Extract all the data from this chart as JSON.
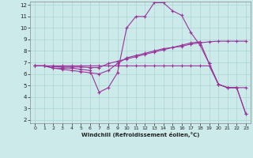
{
  "xlabel": "Windchill (Refroidissement éolien,°C)",
  "bg_color": "#cceaea",
  "grid_color": "#aad4d4",
  "line_color": "#993399",
  "xlim": [
    -0.5,
    23.5
  ],
  "ylim": [
    1.7,
    12.3
  ],
  "xticks": [
    0,
    1,
    2,
    3,
    4,
    5,
    6,
    7,
    8,
    9,
    10,
    11,
    12,
    13,
    14,
    15,
    16,
    17,
    18,
    19,
    20,
    21,
    22,
    23
  ],
  "yticks": [
    2,
    3,
    4,
    5,
    6,
    7,
    8,
    9,
    10,
    11,
    12
  ],
  "line1_x": [
    0,
    1,
    2,
    3,
    4,
    5,
    6,
    7,
    8,
    9,
    10,
    11,
    12,
    13,
    14,
    15,
    16,
    17,
    18,
    19,
    20,
    21,
    22,
    23
  ],
  "line1_y": [
    6.7,
    6.7,
    6.5,
    6.5,
    6.5,
    6.4,
    6.3,
    4.4,
    4.8,
    6.1,
    10.0,
    11.0,
    11.0,
    12.2,
    12.2,
    11.5,
    11.1,
    9.6,
    8.5,
    6.9,
    5.1,
    4.8,
    4.8,
    4.8
  ],
  "line2_x": [
    0,
    1,
    2,
    3,
    4,
    5,
    6,
    7,
    8,
    9,
    10,
    11,
    12,
    13,
    14,
    15,
    16,
    17,
    18,
    19,
    20,
    21,
    22,
    23
  ],
  "line2_y": [
    6.7,
    6.7,
    6.65,
    6.6,
    6.6,
    6.6,
    6.55,
    6.55,
    6.9,
    7.1,
    7.3,
    7.5,
    7.7,
    7.9,
    8.1,
    8.3,
    8.4,
    8.6,
    8.7,
    8.8,
    8.85,
    8.85,
    8.85,
    8.85
  ],
  "line3_x": [
    0,
    1,
    2,
    3,
    4,
    5,
    6,
    7,
    8,
    9,
    10,
    11,
    12,
    13,
    14,
    15,
    16,
    17,
    18,
    19,
    20,
    21,
    22,
    23
  ],
  "line3_y": [
    6.7,
    6.7,
    6.7,
    6.7,
    6.7,
    6.7,
    6.7,
    6.7,
    6.7,
    6.7,
    6.7,
    6.7,
    6.7,
    6.7,
    6.7,
    6.7,
    6.7,
    6.7,
    6.7,
    6.7,
    5.1,
    4.8,
    4.8,
    2.5
  ],
  "line4_x": [
    0,
    1,
    2,
    3,
    4,
    5,
    6,
    7,
    8,
    9,
    10,
    11,
    12,
    13,
    14,
    15,
    16,
    17,
    18,
    19,
    20,
    21,
    22,
    23
  ],
  "line4_y": [
    6.7,
    6.7,
    6.5,
    6.4,
    6.3,
    6.2,
    6.1,
    6.0,
    6.3,
    6.9,
    7.4,
    7.6,
    7.8,
    8.0,
    8.2,
    8.3,
    8.5,
    8.7,
    8.8,
    6.9,
    5.1,
    4.8,
    4.8,
    2.5
  ]
}
